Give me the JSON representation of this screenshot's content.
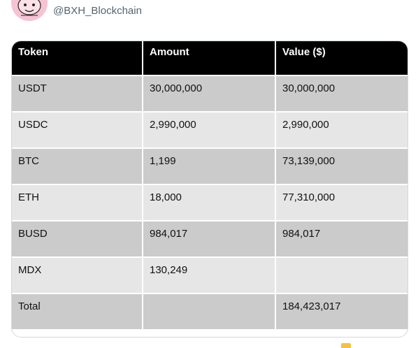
{
  "post": {
    "handle": "@BXH_Blockchain"
  },
  "table": {
    "headers": [
      "Token",
      "Amount",
      "Value ($)"
    ],
    "rows": [
      {
        "token": "USDT",
        "amount": "30,000,000",
        "value": "30,000,000"
      },
      {
        "token": "USDC",
        "amount": "2,990,000",
        "value": "2,990,000"
      },
      {
        "token": "BTC",
        "amount": "1,199",
        "value": "73,139,000"
      },
      {
        "token": "ETH",
        "amount": "18,000",
        "value": "77,310,000"
      },
      {
        "token": "BUSD",
        "amount": "984,017",
        "value": "984,017"
      },
      {
        "token": "MDX",
        "amount": "130,249",
        "value": ""
      }
    ],
    "total": {
      "label": "Total",
      "amount": "",
      "value": "184,423,017"
    }
  },
  "colors": {
    "header_bg": "#000000",
    "row_dark": "#cbcbcb",
    "row_light": "#e6e6e6",
    "handle_text": "#536471"
  }
}
